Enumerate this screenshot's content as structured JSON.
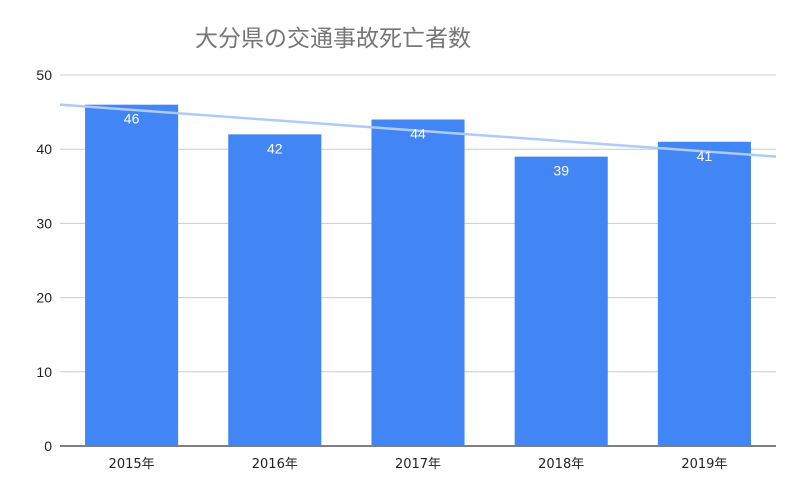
{
  "chart_data": {
    "type": "bar",
    "title": "大分県の交通事故死亡者数",
    "xlabel": "",
    "ylabel": "",
    "categories": [
      "2015年",
      "2016年",
      "2017年",
      "2018年",
      "2019年"
    ],
    "series": [
      {
        "values": [
          46,
          42,
          44,
          39,
          41
        ]
      }
    ],
    "data_labels": [
      "46",
      "42",
      "44",
      "39",
      "41"
    ],
    "ylim": [
      0,
      50
    ],
    "yticks": [
      0,
      10,
      20,
      30,
      40,
      50
    ],
    "ytick_labels": [
      "0",
      "10",
      "20",
      "30",
      "40",
      "50"
    ],
    "trendline": {
      "type": "linear",
      "start": 46.0,
      "end": 39.0
    },
    "grid": true,
    "legend": "none",
    "colors": {
      "bar": "#4285f4",
      "trendline": "#aecbfa",
      "grid": "#cccccc",
      "axis": "#333333"
    }
  }
}
